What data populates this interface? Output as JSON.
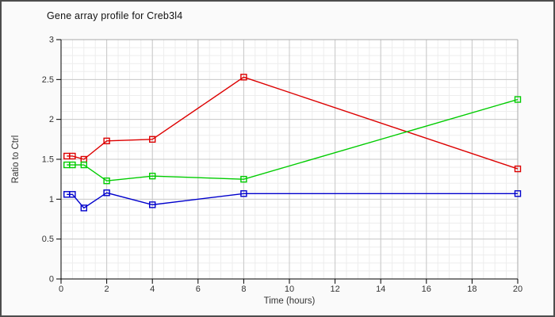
{
  "window": {
    "background": "#fafafa",
    "border_color": "#4d4d4d"
  },
  "chart_data": {
    "type": "line",
    "title": "Gene array profile for Creb3l4",
    "xlabel": "Time (hours)",
    "ylabel": "Ratio to Ctrl",
    "xlim": [
      0,
      20
    ],
    "ylim": [
      0,
      3
    ],
    "x_major_ticks": [
      0,
      2,
      4,
      6,
      8,
      10,
      12,
      14,
      16,
      18,
      20
    ],
    "y_major_ticks": [
      0,
      0.5,
      1,
      1.5,
      2,
      2.5,
      3
    ],
    "x_minor_step": 0.5,
    "y_minor_step": 0.1,
    "grid": "major-and-minor",
    "legend_position": "none",
    "marker": "open-square",
    "x": [
      0.25,
      0.5,
      1,
      2,
      4,
      8,
      20
    ],
    "series": [
      {
        "name": "series-red",
        "color": "#dd0000",
        "values": [
          1.54,
          1.54,
          1.5,
          1.73,
          1.75,
          2.53,
          1.38
        ]
      },
      {
        "name": "series-green",
        "color": "#00cc00",
        "values": [
          1.43,
          1.43,
          1.43,
          1.23,
          1.29,
          1.25,
          2.25
        ]
      },
      {
        "name": "series-blue",
        "color": "#0000cc",
        "values": [
          1.06,
          1.06,
          0.89,
          1.08,
          0.93,
          1.07,
          1.07
        ]
      }
    ],
    "colors": {
      "plot_background": "#ffffff",
      "minor_grid": "#ededed",
      "major_grid": "#c8c8c8",
      "plot_border": "#aaaaaa",
      "axis": "#000000",
      "tick_label": "#333333"
    }
  }
}
